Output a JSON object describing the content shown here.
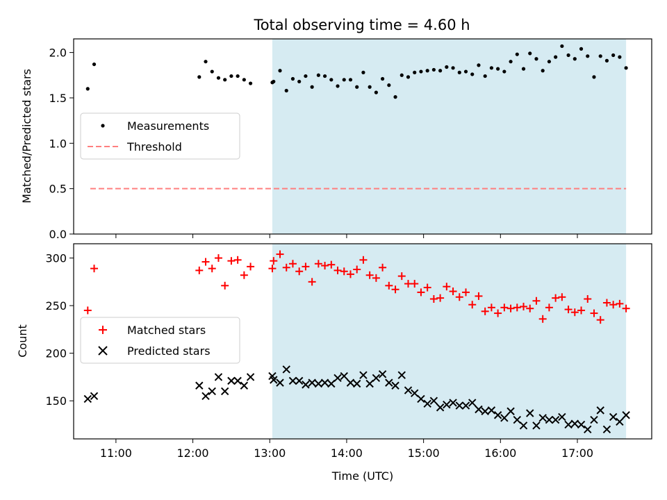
{
  "title": "Total observing time = 4.60 h",
  "colors": {
    "shade": "#add8e6",
    "threshold": "#ff7f7f",
    "matched": "#ff0000",
    "predicted": "#000000",
    "measurement": "#000000"
  },
  "chart_data": [
    {
      "type": "scatter",
      "ylabel": "Matched/Predicted stars",
      "xlabel": "",
      "ylim": [
        0,
        2.15
      ],
      "yticks": [
        "0.0",
        "0.5",
        "1.0",
        "1.5",
        "2.0"
      ],
      "xlim": [
        "10:27",
        "17:58"
      ],
      "shaded_range": [
        "13:02",
        "17:38"
      ],
      "legend_placement": "center-left",
      "threshold": {
        "name": "Threshold",
        "y": 0.5,
        "x": [
          "10:40",
          "17:38"
        ]
      },
      "series": [
        {
          "name": "Measurements",
          "marker": "dot",
          "points": [
            [
              "10:38",
              1.6
            ],
            [
              "10:43",
              1.87
            ],
            [
              "12:05",
              1.73
            ],
            [
              "12:10",
              1.9
            ],
            [
              "12:15",
              1.79
            ],
            [
              "12:20",
              1.72
            ],
            [
              "12:25",
              1.7
            ],
            [
              "12:30",
              1.74
            ],
            [
              "12:35",
              1.74
            ],
            [
              "12:40",
              1.7
            ],
            [
              "12:45",
              1.66
            ],
            [
              "13:02",
              1.67
            ],
            [
              "13:03",
              1.68
            ],
            [
              "13:08",
              1.8
            ],
            [
              "13:13",
              1.58
            ],
            [
              "13:18",
              1.71
            ],
            [
              "13:23",
              1.68
            ],
            [
              "13:28",
              1.74
            ],
            [
              "13:33",
              1.62
            ],
            [
              "13:38",
              1.75
            ],
            [
              "13:43",
              1.74
            ],
            [
              "13:48",
              1.7
            ],
            [
              "13:53",
              1.63
            ],
            [
              "13:58",
              1.7
            ],
            [
              "14:03",
              1.7
            ],
            [
              "14:08",
              1.62
            ],
            [
              "14:13",
              1.78
            ],
            [
              "14:18",
              1.62
            ],
            [
              "14:23",
              1.56
            ],
            [
              "14:28",
              1.71
            ],
            [
              "14:33",
              1.64
            ],
            [
              "14:38",
              1.51
            ],
            [
              "14:43",
              1.75
            ],
            [
              "14:48",
              1.73
            ],
            [
              "14:53",
              1.78
            ],
            [
              "14:58",
              1.79
            ],
            [
              "15:03",
              1.8
            ],
            [
              "15:08",
              1.81
            ],
            [
              "15:13",
              1.8
            ],
            [
              "15:18",
              1.84
            ],
            [
              "15:23",
              1.83
            ],
            [
              "15:28",
              1.78
            ],
            [
              "15:33",
              1.79
            ],
            [
              "15:38",
              1.76
            ],
            [
              "15:43",
              1.86
            ],
            [
              "15:48",
              1.74
            ],
            [
              "15:53",
              1.83
            ],
            [
              "15:58",
              1.82
            ],
            [
              "16:03",
              1.79
            ],
            [
              "16:08",
              1.9
            ],
            [
              "16:13",
              1.98
            ],
            [
              "16:18",
              1.82
            ],
            [
              "16:23",
              1.99
            ],
            [
              "16:28",
              1.93
            ],
            [
              "16:33",
              1.8
            ],
            [
              "16:38",
              1.9
            ],
            [
              "16:43",
              1.95
            ],
            [
              "16:48",
              2.07
            ],
            [
              "16:53",
              1.97
            ],
            [
              "16:58",
              1.93
            ],
            [
              "17:03",
              2.04
            ],
            [
              "17:08",
              1.96
            ],
            [
              "17:13",
              1.73
            ],
            [
              "17:18",
              1.96
            ],
            [
              "17:23",
              1.91
            ],
            [
              "17:28",
              1.97
            ],
            [
              "17:33",
              1.95
            ],
            [
              "17:38",
              1.83
            ]
          ]
        }
      ]
    },
    {
      "type": "scatter",
      "ylabel": "Count",
      "xlabel": "Time (UTC)",
      "ylim": [
        110,
        315
      ],
      "yticks": [
        "150",
        "200",
        "250",
        "300"
      ],
      "xlim": [
        "10:27",
        "17:58"
      ],
      "xticks": [
        "11:00",
        "12:00",
        "13:00",
        "14:00",
        "15:00",
        "16:00",
        "17:00"
      ],
      "shaded_range": [
        "13:02",
        "17:38"
      ],
      "legend_placement": "center-left",
      "series": [
        {
          "name": "Matched stars",
          "marker": "plus",
          "points": [
            [
              "10:38",
              245
            ],
            [
              "10:43",
              289
            ],
            [
              "12:05",
              287
            ],
            [
              "12:10",
              296
            ],
            [
              "12:15",
              289
            ],
            [
              "12:20",
              300
            ],
            [
              "12:25",
              271
            ],
            [
              "12:30",
              297
            ],
            [
              "12:35",
              298
            ],
            [
              "12:40",
              282
            ],
            [
              "12:45",
              291
            ],
            [
              "13:02",
              289
            ],
            [
              "13:03",
              297
            ],
            [
              "13:08",
              304
            ],
            [
              "13:13",
              290
            ],
            [
              "13:18",
              294
            ],
            [
              "13:23",
              286
            ],
            [
              "13:28",
              291
            ],
            [
              "13:33",
              275
            ],
            [
              "13:38",
              294
            ],
            [
              "13:43",
              292
            ],
            [
              "13:48",
              293
            ],
            [
              "13:53",
              287
            ],
            [
              "13:58",
              286
            ],
            [
              "14:03",
              283
            ],
            [
              "14:08",
              288
            ],
            [
              "14:13",
              298
            ],
            [
              "14:18",
              282
            ],
            [
              "14:23",
              279
            ],
            [
              "14:28",
              290
            ],
            [
              "14:33",
              271
            ],
            [
              "14:38",
              267
            ],
            [
              "14:43",
              281
            ],
            [
              "14:48",
              273
            ],
            [
              "14:53",
              273
            ],
            [
              "14:58",
              264
            ],
            [
              "15:03",
              269
            ],
            [
              "15:08",
              257
            ],
            [
              "15:13",
              258
            ],
            [
              "15:18",
              270
            ],
            [
              "15:23",
              265
            ],
            [
              "15:28",
              259
            ],
            [
              "15:33",
              264
            ],
            [
              "15:38",
              251
            ],
            [
              "15:43",
              260
            ],
            [
              "15:48",
              244
            ],
            [
              "15:53",
              248
            ],
            [
              "15:58",
              242
            ],
            [
              "16:03",
              248
            ],
            [
              "16:08",
              247
            ],
            [
              "16:13",
              248
            ],
            [
              "16:18",
              249
            ],
            [
              "16:23",
              247
            ],
            [
              "16:28",
              255
            ],
            [
              "16:33",
              236
            ],
            [
              "16:38",
              248
            ],
            [
              "16:43",
              258
            ],
            [
              "16:48",
              259
            ],
            [
              "16:53",
              246
            ],
            [
              "16:58",
              243
            ],
            [
              "17:03",
              245
            ],
            [
              "17:08",
              257
            ],
            [
              "17:13",
              242
            ],
            [
              "17:18",
              235
            ],
            [
              "17:23",
              253
            ],
            [
              "17:28",
              251
            ],
            [
              "17:33",
              252
            ],
            [
              "17:38",
              247
            ]
          ]
        },
        {
          "name": "Predicted stars",
          "marker": "x",
          "points": [
            [
              "10:38",
              152
            ],
            [
              "10:43",
              155
            ],
            [
              "12:05",
              166
            ],
            [
              "12:10",
              155
            ],
            [
              "12:15",
              160
            ],
            [
              "12:20",
              175
            ],
            [
              "12:25",
              160
            ],
            [
              "12:30",
              171
            ],
            [
              "12:35",
              171
            ],
            [
              "12:40",
              166
            ],
            [
              "12:45",
              175
            ],
            [
              "13:02",
              176
            ],
            [
              "13:03",
              172
            ],
            [
              "13:08",
              169
            ],
            [
              "13:13",
              183
            ],
            [
              "13:18",
              171
            ],
            [
              "13:23",
              171
            ],
            [
              "13:28",
              167
            ],
            [
              "13:33",
              169
            ],
            [
              "13:38",
              168
            ],
            [
              "13:43",
              169
            ],
            [
              "13:48",
              168
            ],
            [
              "13:53",
              174
            ],
            [
              "13:58",
              176
            ],
            [
              "14:03",
              169
            ],
            [
              "14:08",
              168
            ],
            [
              "14:13",
              177
            ],
            [
              "14:18",
              168
            ],
            [
              "14:23",
              174
            ],
            [
              "14:28",
              178
            ],
            [
              "14:33",
              169
            ],
            [
              "14:38",
              166
            ],
            [
              "14:43",
              177
            ],
            [
              "14:48",
              161
            ],
            [
              "14:53",
              158
            ],
            [
              "14:58",
              152
            ],
            [
              "15:03",
              147
            ],
            [
              "15:08",
              150
            ],
            [
              "15:13",
              143
            ],
            [
              "15:18",
              146
            ],
            [
              "15:23",
              148
            ],
            [
              "15:28",
              145
            ],
            [
              "15:33",
              145
            ],
            [
              "15:38",
              148
            ],
            [
              "15:43",
              141
            ],
            [
              "15:48",
              139
            ],
            [
              "15:53",
              140
            ],
            [
              "15:58",
              135
            ],
            [
              "16:03",
              132
            ],
            [
              "16:08",
              139
            ],
            [
              "16:13",
              130
            ],
            [
              "16:18",
              124
            ],
            [
              "16:23",
              137
            ],
            [
              "16:28",
              124
            ],
            [
              "16:33",
              132
            ],
            [
              "16:38",
              130
            ],
            [
              "16:43",
              130
            ],
            [
              "16:48",
              133
            ],
            [
              "16:53",
              125
            ],
            [
              "16:58",
              126
            ],
            [
              "17:03",
              125
            ],
            [
              "17:08",
              120
            ],
            [
              "17:13",
              130
            ],
            [
              "17:18",
              140
            ],
            [
              "17:23",
              120
            ],
            [
              "17:28",
              133
            ],
            [
              "17:33",
              128
            ],
            [
              "17:38",
              135
            ]
          ]
        }
      ]
    }
  ]
}
